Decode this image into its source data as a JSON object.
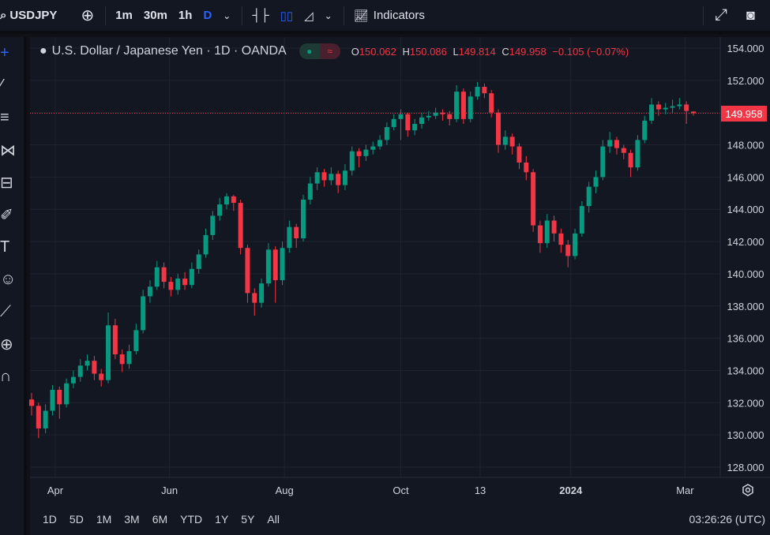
{
  "toolbar": {
    "symbol": "USDJPY",
    "intervals": [
      "1m",
      "30m",
      "1h",
      "D"
    ],
    "indicators_label": "Indicators"
  },
  "legend": {
    "title": "U.S. Dollar / Japanese Yen · 1D · OANDA",
    "o_label": "O",
    "o": "150.062",
    "h_label": "H",
    "h": "150.086",
    "l_label": "L",
    "l": "149.814",
    "c_label": "C",
    "c": "149.958",
    "change": "−0.105 (−0.07%)"
  },
  "ranges": [
    "1D",
    "5D",
    "1M",
    "3M",
    "6M",
    "YTD",
    "1Y",
    "5Y",
    "All"
  ],
  "clock": "03:26:26 (UTC)",
  "colors": {
    "up": "#089981",
    "down": "#f23645",
    "bg": "#131722",
    "grid": "#1f2330"
  },
  "chart_data": {
    "type": "candlestick",
    "title": "U.S. Dollar / Japanese Yen · 1D · OANDA",
    "ylim": [
      127.5,
      154.6
    ],
    "y_ticks": [
      "154.000",
      "152.000",
      "150.000",
      "148.000",
      "146.000",
      "144.000",
      "142.000",
      "140.000",
      "138.000",
      "136.000",
      "134.000",
      "132.000",
      "130.000",
      "128.000"
    ],
    "x_ticks": [
      {
        "label": "Apr",
        "index": 3.4
      },
      {
        "label": "Jun",
        "index": 19.8
      },
      {
        "label": "Aug",
        "index": 36.3
      },
      {
        "label": "Oct",
        "index": 53
      },
      {
        "label": "13",
        "index": 64.4
      },
      {
        "label": "2024",
        "index": 77.4
      },
      {
        "label": "Mar",
        "index": 93.8
      }
    ],
    "last_price": "149.958",
    "candles": [
      [
        132.2,
        132.6,
        131.2,
        131.8
      ],
      [
        131.8,
        132.0,
        129.8,
        130.4
      ],
      [
        130.4,
        131.9,
        130.1,
        131.5
      ],
      [
        131.5,
        133.1,
        131.2,
        132.8
      ],
      [
        132.8,
        133.0,
        131.0,
        131.9
      ],
      [
        131.9,
        133.5,
        131.7,
        133.2
      ],
      [
        133.2,
        134.0,
        132.9,
        133.6
      ],
      [
        133.6,
        134.7,
        133.3,
        134.3
      ],
      [
        134.3,
        135.0,
        134.0,
        134.6
      ],
      [
        134.6,
        134.9,
        133.4,
        133.8
      ],
      [
        133.8,
        134.1,
        133.0,
        133.4
      ],
      [
        133.4,
        137.6,
        133.2,
        136.8
      ],
      [
        136.8,
        137.2,
        134.7,
        135.0
      ],
      [
        135.0,
        135.3,
        133.9,
        134.4
      ],
      [
        134.4,
        135.6,
        134.1,
        135.2
      ],
      [
        135.2,
        136.9,
        135.0,
        136.5
      ],
      [
        136.5,
        139.0,
        136.3,
        138.6
      ],
      [
        138.6,
        139.6,
        138.2,
        139.2
      ],
      [
        139.2,
        140.8,
        139.0,
        140.4
      ],
      [
        140.4,
        140.7,
        139.1,
        139.5
      ],
      [
        139.5,
        139.8,
        138.6,
        139.0
      ],
      [
        139.0,
        140.0,
        138.7,
        139.7
      ],
      [
        139.7,
        140.1,
        139.0,
        139.3
      ],
      [
        139.3,
        140.7,
        139.1,
        140.3
      ],
      [
        140.3,
        141.5,
        140.0,
        141.2
      ],
      [
        141.2,
        142.8,
        141.0,
        142.4
      ],
      [
        142.4,
        143.9,
        142.1,
        143.6
      ],
      [
        143.6,
        144.7,
        143.3,
        144.3
      ],
      [
        144.3,
        145.0,
        144.0,
        144.8
      ],
      [
        144.8,
        144.9,
        143.9,
        144.4
      ],
      [
        144.4,
        144.6,
        141.2,
        141.6
      ],
      [
        141.6,
        141.8,
        138.2,
        138.8
      ],
      [
        138.8,
        139.1,
        137.4,
        138.2
      ],
      [
        138.2,
        139.7,
        137.9,
        139.4
      ],
      [
        139.4,
        141.9,
        139.2,
        141.5
      ],
      [
        141.5,
        141.7,
        138.2,
        139.6
      ],
      [
        139.6,
        142.0,
        139.3,
        141.6
      ],
      [
        141.6,
        143.3,
        141.3,
        142.9
      ],
      [
        142.9,
        143.1,
        141.6,
        142.2
      ],
      [
        142.2,
        144.9,
        142.0,
        144.6
      ],
      [
        144.6,
        146.0,
        144.3,
        145.6
      ],
      [
        145.6,
        146.6,
        145.2,
        146.3
      ],
      [
        146.3,
        146.5,
        145.4,
        145.8
      ],
      [
        145.8,
        146.6,
        145.5,
        146.2
      ],
      [
        146.2,
        146.4,
        145.0,
        145.5
      ],
      [
        145.5,
        146.8,
        145.2,
        146.4
      ],
      [
        146.4,
        147.9,
        146.1,
        147.6
      ],
      [
        147.6,
        147.8,
        146.6,
        147.3
      ],
      [
        147.3,
        148.0,
        147.0,
        147.7
      ],
      [
        147.7,
        148.2,
        147.4,
        147.9
      ],
      [
        147.9,
        148.6,
        147.7,
        148.3
      ],
      [
        148.3,
        149.4,
        148.0,
        149.1
      ],
      [
        149.1,
        149.9,
        148.9,
        149.6
      ],
      [
        149.6,
        150.2,
        148.3,
        149.9
      ],
      [
        149.9,
        150.0,
        148.5,
        148.9
      ],
      [
        148.9,
        149.6,
        148.6,
        149.3
      ],
      [
        149.3,
        150.0,
        149.0,
        149.7
      ],
      [
        149.7,
        150.1,
        149.5,
        149.8
      ],
      [
        149.8,
        150.3,
        149.6,
        150.0
      ],
      [
        150.0,
        150.2,
        149.5,
        149.9
      ],
      [
        149.9,
        150.1,
        149.2,
        149.6
      ],
      [
        149.6,
        151.7,
        149.4,
        151.3
      ],
      [
        151.3,
        151.5,
        149.3,
        149.6
      ],
      [
        149.6,
        151.3,
        149.4,
        151.0
      ],
      [
        151.0,
        151.9,
        150.8,
        151.6
      ],
      [
        151.6,
        151.8,
        150.9,
        151.2
      ],
      [
        151.2,
        151.4,
        149.7,
        150.0
      ],
      [
        150.0,
        150.2,
        147.5,
        148.0
      ],
      [
        148.0,
        148.9,
        147.7,
        148.5
      ],
      [
        148.5,
        148.7,
        147.4,
        147.9
      ],
      [
        147.9,
        148.1,
        146.5,
        146.9
      ],
      [
        146.9,
        147.3,
        145.8,
        146.3
      ],
      [
        146.3,
        146.5,
        142.6,
        143.0
      ],
      [
        143.0,
        143.3,
        141.3,
        141.9
      ],
      [
        141.9,
        143.7,
        141.6,
        143.3
      ],
      [
        143.3,
        143.6,
        142.0,
        142.5
      ],
      [
        142.5,
        142.8,
        141.3,
        141.8
      ],
      [
        141.8,
        142.1,
        140.4,
        141.1
      ],
      [
        141.1,
        142.8,
        140.9,
        142.5
      ],
      [
        142.5,
        144.5,
        142.3,
        144.2
      ],
      [
        144.2,
        145.7,
        143.8,
        145.4
      ],
      [
        145.4,
        146.4,
        145.0,
        146.0
      ],
      [
        146.0,
        148.3,
        145.8,
        147.9
      ],
      [
        147.9,
        148.8,
        147.5,
        148.3
      ],
      [
        148.3,
        148.5,
        147.4,
        147.8
      ],
      [
        147.8,
        148.0,
        147.1,
        147.5
      ],
      [
        147.5,
        147.7,
        146.0,
        146.6
      ],
      [
        146.6,
        148.6,
        146.4,
        148.3
      ],
      [
        148.3,
        149.8,
        148.1,
        149.5
      ],
      [
        149.5,
        150.9,
        149.3,
        150.5
      ],
      [
        150.5,
        150.7,
        149.8,
        150.2
      ],
      [
        150.2,
        150.6,
        149.9,
        150.3
      ],
      [
        150.3,
        150.8,
        150.0,
        150.4
      ],
      [
        150.4,
        150.9,
        150.2,
        150.5
      ],
      [
        150.5,
        150.7,
        149.3,
        150.1
      ],
      [
        150.062,
        150.086,
        149.814,
        149.958
      ]
    ]
  }
}
